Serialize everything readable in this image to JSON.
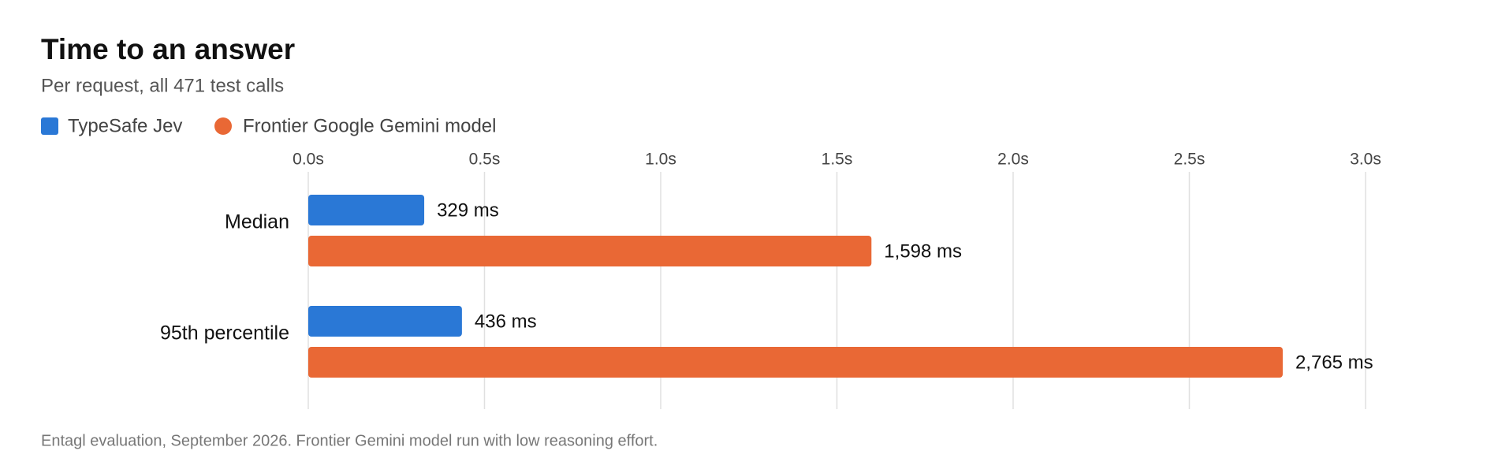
{
  "chart_data": {
    "type": "bar",
    "orientation": "horizontal",
    "title": "Time to an answer",
    "subtitle": "Per request, all 471 test calls",
    "categories": [
      "Median",
      "95th percentile"
    ],
    "series": [
      {
        "name": "TypeSafe Jev",
        "color": "#2a78d6",
        "values": [
          0.329,
          0.436
        ],
        "value_labels": [
          "329 ms",
          "436 ms"
        ]
      },
      {
        "name": "Frontier Google Gemini model",
        "color": "#e96835",
        "values": [
          1.598,
          2.765
        ],
        "value_labels": [
          "1,598 ms",
          "2,765 ms"
        ]
      }
    ],
    "xlim": [
      0,
      3.0
    ],
    "xticks": [
      {
        "value": 0,
        "label": "0.0s"
      },
      {
        "value": 0.5,
        "label": "0.5s"
      },
      {
        "value": 1.0,
        "label": "1.0s"
      },
      {
        "value": 1.5,
        "label": "1.5s"
      },
      {
        "value": 2.0,
        "label": "2.0s"
      },
      {
        "value": 2.5,
        "label": "2.5s"
      },
      {
        "value": 3.0,
        "label": "3.0s"
      }
    ],
    "grid": true,
    "footnote": "Entagl evaluation, September 2026. Frontier Gemini model run with low reasoning effort."
  }
}
